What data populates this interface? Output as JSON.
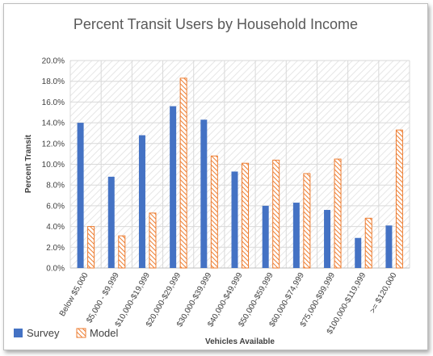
{
  "chart_data": {
    "type": "bar",
    "title": "Percent Transit Users by Household Income",
    "xlabel": "Vehicles Available",
    "ylabel": "Percent Transit",
    "ylim": [
      0,
      20
    ],
    "ytick_step": 2,
    "ytick_format": "percent_1dp",
    "grid": true,
    "legend": "bottom-left",
    "categories": [
      "Below $5,000",
      "$5,000 - $9,999",
      "$10,000-$19,999",
      "$20,000-$29,999",
      "$30,000-$39,999",
      "$40,000-$49,999",
      "$50,000-$59,999",
      "$60,000-$74,999",
      "$75,000-$99,999",
      "$100,000-$119,999",
      ">= $120,000"
    ],
    "series": [
      {
        "name": "Survey",
        "color": "#4472c4",
        "pattern": "solid",
        "values": [
          14.0,
          8.8,
          12.8,
          15.6,
          14.3,
          9.3,
          6.0,
          6.3,
          5.6,
          2.9,
          4.1
        ]
      },
      {
        "name": "Model",
        "color": "#ed7d31",
        "pattern": "hatch",
        "values": [
          4.0,
          3.1,
          5.3,
          18.3,
          10.8,
          10.1,
          10.4,
          9.1,
          10.5,
          4.8,
          13.3
        ]
      }
    ]
  }
}
